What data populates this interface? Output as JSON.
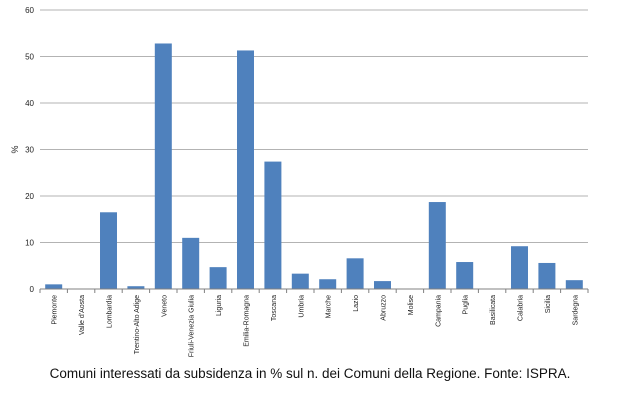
{
  "chart_data": {
    "type": "bar",
    "title": "",
    "xlabel": "",
    "ylabel": "%",
    "ylim": [
      0,
      60
    ],
    "yticks": [
      0,
      10,
      20,
      30,
      40,
      50,
      60
    ],
    "grid": true,
    "legend": "none",
    "color": "#4f81bd",
    "categories": [
      "Piemonte",
      "Valle d'Aosta",
      "Lombardia",
      "Trentino-Alto Adige",
      "Veneto",
      "Friuli-Venezia Giulia",
      "Liguria",
      "Emilia-Romagna",
      "Toscana",
      "Umbria",
      "Marche",
      "Lazio",
      "Abruzzo",
      "Molise",
      "Campania",
      "Puglia",
      "Basilicata",
      "Calabria",
      "Sicilia",
      "Sardegna"
    ],
    "values": [
      1.0,
      0,
      16.5,
      0.6,
      52.8,
      11.0,
      4.7,
      51.3,
      27.4,
      3.3,
      2.1,
      6.6,
      1.7,
      0,
      18.7,
      5.8,
      0,
      9.2,
      5.6,
      1.9
    ]
  },
  "caption": "Comuni interessati da subsidenza in % sul n. dei Comuni della Regione. Fonte: ISPRA."
}
